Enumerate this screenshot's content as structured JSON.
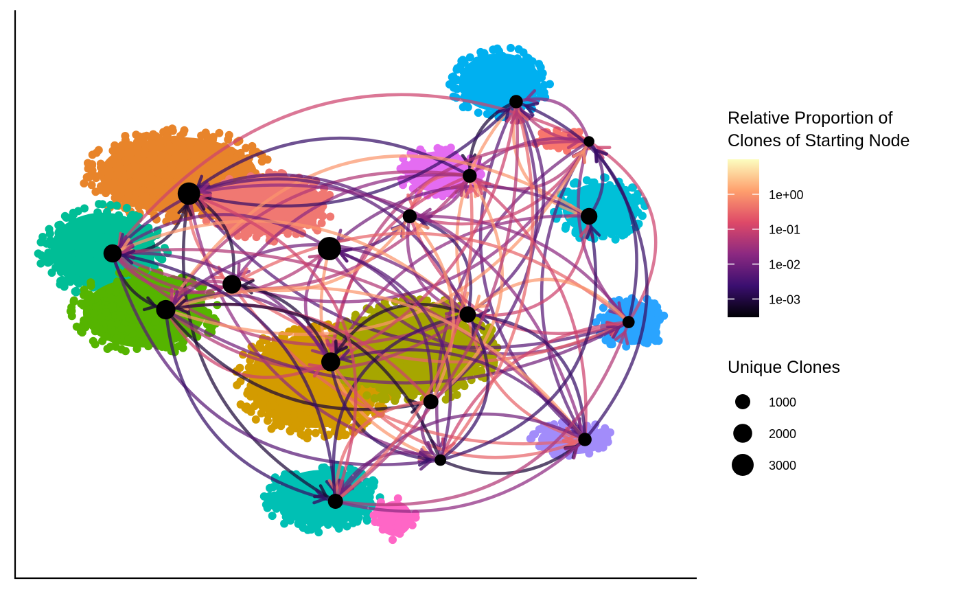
{
  "chart_data": {
    "type": "network",
    "xlabel": "",
    "ylabel": "",
    "grid": false,
    "legend_position": "right",
    "nodes": [
      {
        "id": "A",
        "x": 0.735,
        "y": 0.148,
        "unique_clones": 700
      },
      {
        "id": "B",
        "x": 0.842,
        "y": 0.206,
        "unique_clones": 300
      },
      {
        "id": "C",
        "x": 0.667,
        "y": 0.256,
        "unique_clones": 800
      },
      {
        "id": "D",
        "x": 0.255,
        "y": 0.282,
        "unique_clones": 3200
      },
      {
        "id": "E",
        "x": 0.842,
        "y": 0.315,
        "unique_clones": 1400
      },
      {
        "id": "F",
        "x": 0.579,
        "y": 0.315,
        "unique_clones": 800
      },
      {
        "id": "G",
        "x": 0.143,
        "y": 0.369,
        "unique_clones": 1800
      },
      {
        "id": "H",
        "x": 0.461,
        "y": 0.362,
        "unique_clones": 3500
      },
      {
        "id": "I",
        "x": 0.318,
        "y": 0.414,
        "unique_clones": 1900
      },
      {
        "id": "J",
        "x": 0.221,
        "y": 0.451,
        "unique_clones": 2100
      },
      {
        "id": "K",
        "x": 0.664,
        "y": 0.458,
        "unique_clones": 1300
      },
      {
        "id": "L",
        "x": 0.9,
        "y": 0.469,
        "unique_clones": 500
      },
      {
        "id": "M",
        "x": 0.463,
        "y": 0.527,
        "unique_clones": 2000
      },
      {
        "id": "N",
        "x": 0.61,
        "y": 0.585,
        "unique_clones": 1000
      },
      {
        "id": "O",
        "x": 0.836,
        "y": 0.64,
        "unique_clones": 700
      },
      {
        "id": "P",
        "x": 0.624,
        "y": 0.67,
        "unique_clones": 400
      },
      {
        "id": "Q",
        "x": 0.47,
        "y": 0.73,
        "unique_clones": 1000
      }
    ],
    "color_legend": {
      "title_lines": [
        "Relative Proportion of",
        "Clones of Starting Node"
      ],
      "scale": "log10",
      "range": [
        0.0003,
        10
      ],
      "ticks": [
        {
          "label": "1e+00",
          "value": 1
        },
        {
          "label": "1e-01",
          "value": 0.1
        },
        {
          "label": "1e-02",
          "value": 0.01
        },
        {
          "label": "1e-03",
          "value": 0.001
        }
      ],
      "palette": [
        "#000004",
        "#3b0f70",
        "#8c2981",
        "#de4968",
        "#fe9f6d",
        "#fcfdbf"
      ]
    },
    "size_legend": {
      "title": "Unique Clones",
      "entries": [
        {
          "label": "1000",
          "value": 1000
        },
        {
          "label": "2000",
          "value": 2000
        },
        {
          "label": "3000",
          "value": 3000
        }
      ]
    },
    "clusters": [
      {
        "id": "c1",
        "color": "#00b0f0"
      },
      {
        "id": "c2",
        "color": "#e8842a"
      },
      {
        "id": "c3",
        "color": "#f07872"
      },
      {
        "id": "c4",
        "color": "#00be96"
      },
      {
        "id": "c5",
        "color": "#55b400"
      },
      {
        "id": "c6",
        "color": "#d39b00"
      },
      {
        "id": "c7",
        "color": "#a6a600"
      },
      {
        "id": "c8",
        "color": "#00c0b4"
      },
      {
        "id": "c9",
        "color": "#ff66c6"
      },
      {
        "id": "c10",
        "color": "#a28cfa"
      },
      {
        "id": "c11",
        "color": "#2aa4ff"
      },
      {
        "id": "c12",
        "color": "#e46cf2"
      },
      {
        "id": "c13",
        "color": "#00c0d8"
      },
      {
        "id": "c14",
        "color": "#f8766d"
      }
    ]
  }
}
